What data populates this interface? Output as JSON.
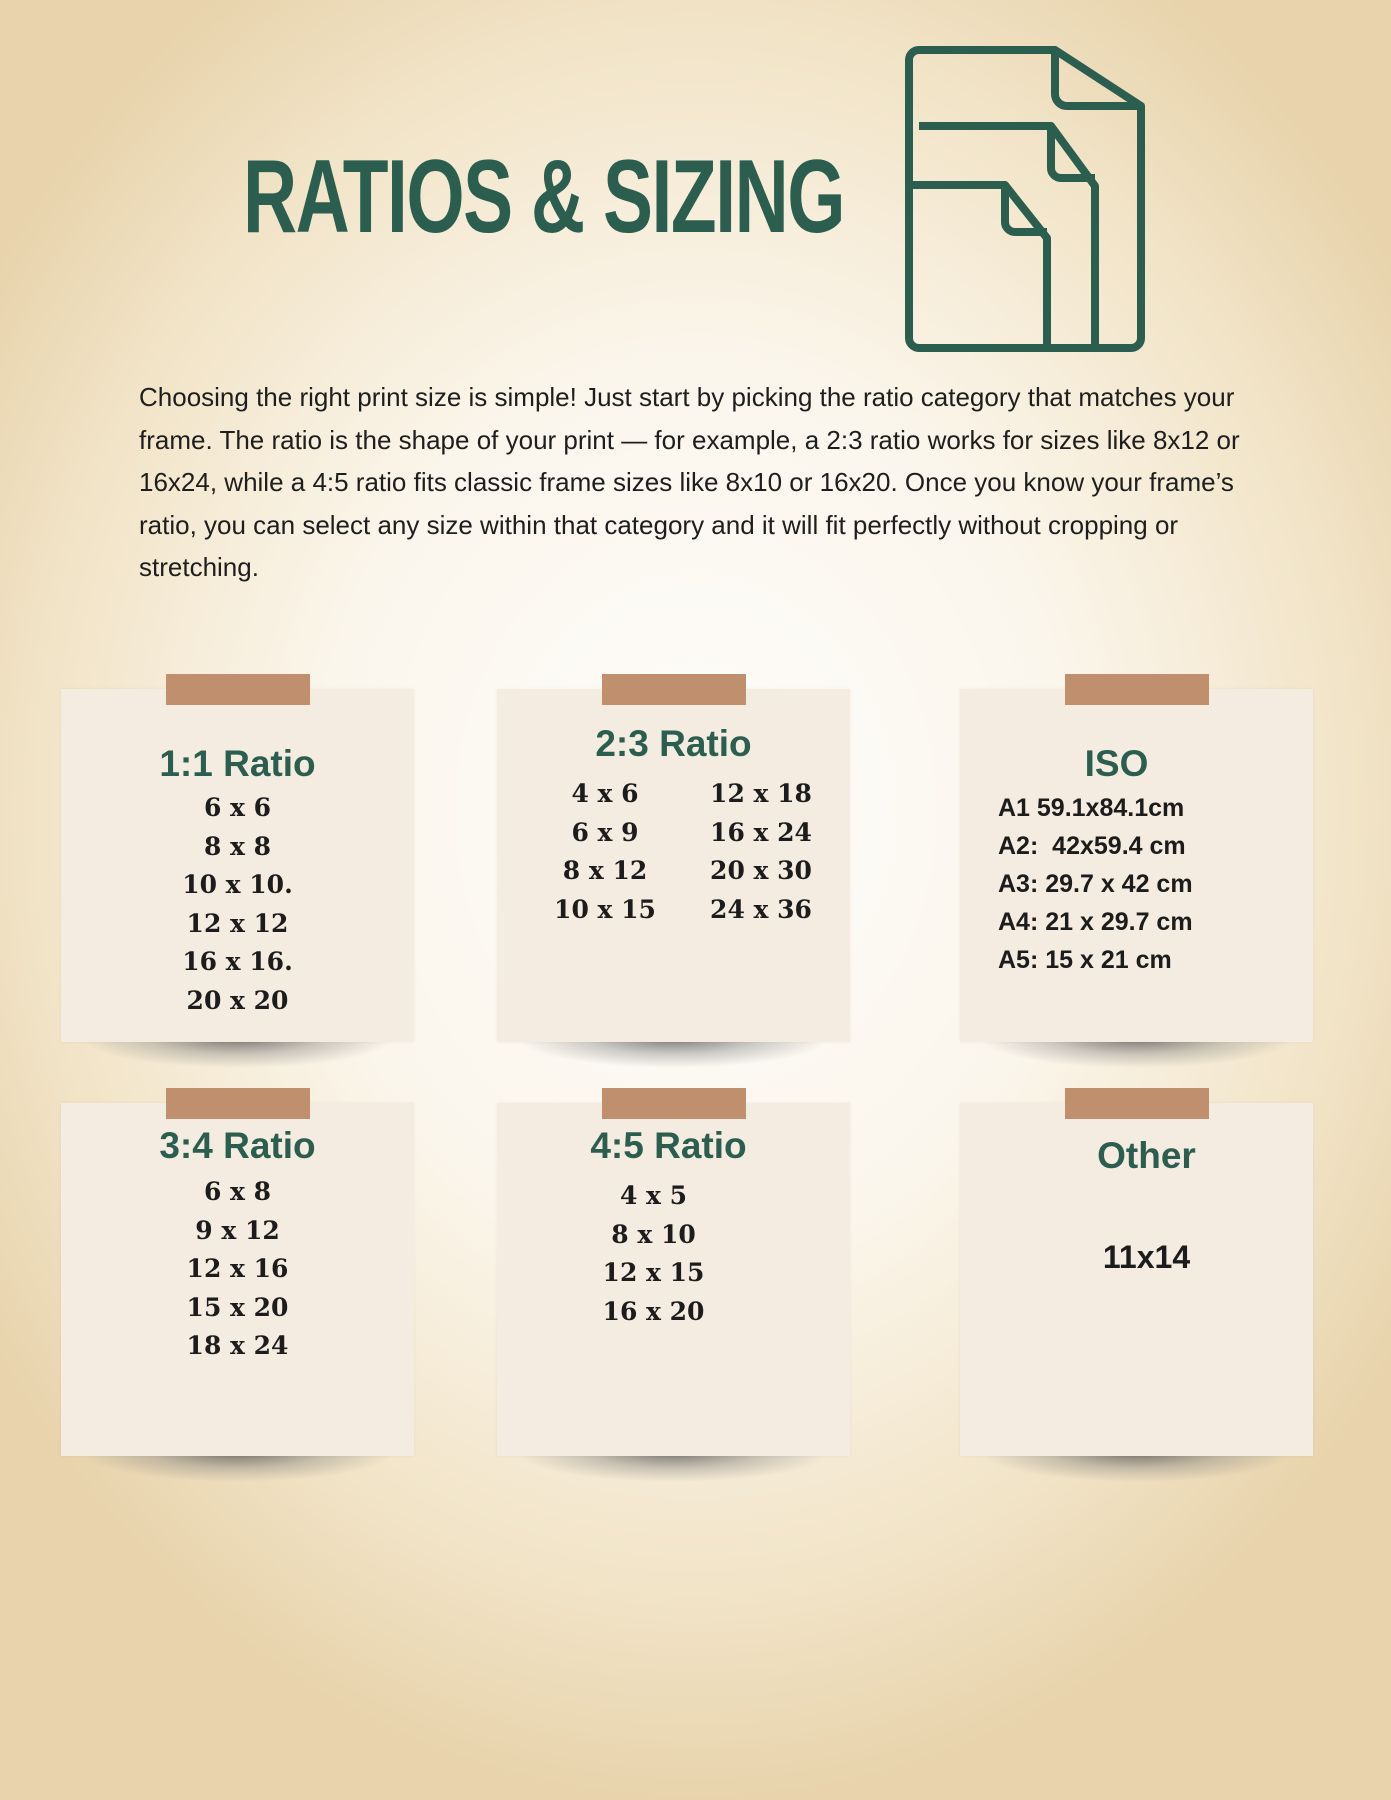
{
  "title": "RATIOS & SIZING",
  "icon": "stacked-documents-icon",
  "intro": "Choosing the right print size is simple! Just start by picking the ratio category that matches your frame. The ratio is the shape of your print — for example, a 2:3 ratio works for sizes like 8x12 or 16x24, while a 4:5 ratio fits classic frame sizes like 8x10 or 16x20. Once you know your frame’s ratio, you can select any size within that category and it will fit perfectly without cropping or stretching.",
  "colors": {
    "accent": "#2c5e50",
    "tape": "#c08f6e",
    "card": "#f4ece0"
  },
  "cards": [
    {
      "heading": "1:1 Ratio",
      "sizes": [
        "6 x 6",
        "8 x 8",
        "10 x 10.",
        "12 x 12",
        "16 x 16.",
        "20 x 20"
      ]
    },
    {
      "heading": "2:3 Ratio",
      "col1": [
        "4 x 6",
        "6 x 9",
        "8 x 12",
        "10 x 15"
      ],
      "col2": [
        "12 x 18",
        "16 x 24",
        "20 x 30",
        "24 x 36"
      ]
    },
    {
      "heading": "ISO",
      "sizes": [
        "A1 59.1x84.1cm",
        "A2:  42x59.4 cm",
        "A3: 29.7 x 42 cm",
        "A4: 21 x 29.7 cm",
        "A5: 15 x 21 cm"
      ]
    },
    {
      "heading": "3:4 Ratio",
      "sizes": [
        "6 x 8",
        "9 x 12",
        "12 x 16",
        "15 x 20",
        "18 x 24"
      ]
    },
    {
      "heading": "4:5 Ratio",
      "sizes": [
        "4 x 5",
        "8 x 10",
        "12 x 15",
        "16 x 20"
      ]
    },
    {
      "heading": "Other",
      "sizes": [
        "11x14"
      ]
    }
  ]
}
